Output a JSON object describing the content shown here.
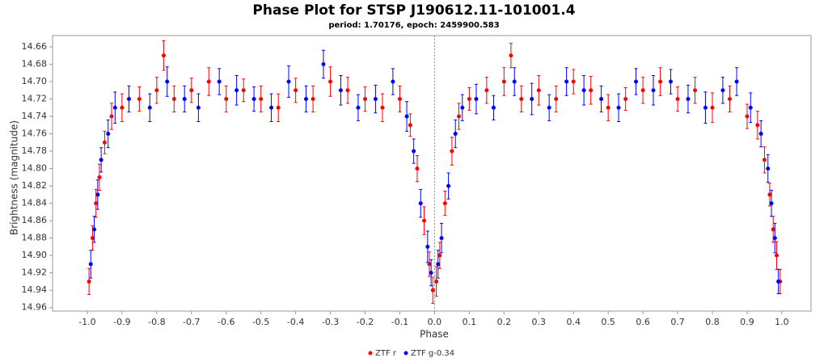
{
  "chart_data": {
    "type": "scatter",
    "title": "Phase Plot for STSP J190612.11-101001.4",
    "subtitle": "period: 1.70176, epoch: 2459900.583",
    "x_label": "Phase",
    "y_label": "Brightness (magnitude)",
    "xlim": [
      -1.1,
      1.084
    ],
    "ylim": [
      14.964,
      14.647
    ],
    "xticks": [
      {
        "value": -1,
        "label": "-1.0"
      },
      -0.9,
      -0.8,
      -0.7,
      -0.6,
      -0.5,
      -0.4,
      -0.3,
      -0.2,
      -0.1,
      {
        "value": 0,
        "label": "0.0"
      },
      0.1,
      0.2,
      0.3,
      0.4,
      0.5,
      0.6,
      0.7,
      0.8,
      0.9,
      {
        "value": 1,
        "label": "1.0"
      }
    ],
    "yticks": [
      14.66,
      14.68,
      {
        "value": 14.7,
        "label": "14.70"
      },
      14.72,
      14.74,
      14.76,
      14.78,
      {
        "value": 14.8,
        "label": "14.80"
      },
      14.82,
      14.84,
      14.86,
      14.88,
      {
        "value": 14.9,
        "label": "14.90"
      },
      14.92,
      14.94,
      14.96
    ],
    "reference_line_x": 0,
    "legend": "bottom",
    "series": [
      {
        "name": "ZTF r",
        "color": "#ff0000",
        "x": [
          -0.995,
          -0.985,
          -0.975,
          -0.965,
          -0.95,
          -0.93,
          -0.9,
          -0.85,
          -0.8,
          -0.78,
          -0.75,
          -0.7,
          -0.65,
          -0.6,
          -0.55,
          -0.5,
          -0.45,
          -0.4,
          -0.35,
          -0.3,
          -0.25,
          -0.2,
          -0.15,
          -0.1,
          -0.07,
          -0.05,
          -0.03,
          -0.015,
          -0.005,
          0.005,
          0.015,
          0.03,
          0.05,
          0.07,
          0.1,
          0.15,
          0.2,
          0.22,
          0.25,
          0.3,
          0.35,
          0.4,
          0.45,
          0.5,
          0.55,
          0.6,
          0.65,
          0.7,
          0.75,
          0.8,
          0.85,
          0.9,
          0.93,
          0.95,
          0.965,
          0.975,
          0.985,
          0.995
        ],
        "values": [
          14.93,
          14.88,
          14.84,
          14.81,
          14.77,
          14.74,
          14.73,
          14.72,
          14.71,
          14.67,
          14.72,
          14.71,
          14.7,
          14.72,
          14.71,
          14.72,
          14.73,
          14.71,
          14.72,
          14.7,
          14.71,
          14.72,
          14.73,
          14.72,
          14.75,
          14.8,
          14.86,
          14.91,
          14.94,
          14.93,
          14.9,
          14.84,
          14.78,
          14.74,
          14.72,
          14.71,
          14.7,
          14.67,
          14.72,
          14.71,
          14.72,
          14.7,
          14.71,
          14.73,
          14.72,
          14.71,
          14.7,
          14.72,
          14.71,
          14.73,
          14.72,
          14.74,
          14.75,
          14.79,
          14.83,
          14.87,
          14.9,
          14.93
        ],
        "errors": [
          0.015,
          0.014,
          0.016,
          0.015,
          0.013,
          0.015,
          0.016,
          0.014,
          0.015,
          0.017,
          0.015,
          0.014,
          0.016,
          0.015,
          0.013,
          0.015,
          0.016,
          0.014,
          0.015,
          0.017,
          0.015,
          0.014,
          0.016,
          0.015,
          0.013,
          0.015,
          0.016,
          0.014,
          0.015,
          0.017,
          0.015,
          0.014,
          0.016,
          0.015,
          0.013,
          0.015,
          0.016,
          0.014,
          0.015,
          0.017,
          0.015,
          0.014,
          0.016,
          0.015,
          0.013,
          0.015,
          0.016,
          0.014,
          0.015,
          0.017,
          0.015,
          0.014,
          0.016,
          0.015,
          0.013,
          0.015,
          0.016,
          0.014
        ]
      },
      {
        "name": "ZTF g-0.34",
        "color": "#0000ff",
        "x": [
          -0.99,
          -0.98,
          -0.97,
          -0.96,
          -0.94,
          -0.92,
          -0.88,
          -0.82,
          -0.77,
          -0.72,
          -0.68,
          -0.62,
          -0.57,
          -0.52,
          -0.47,
          -0.42,
          -0.37,
          -0.32,
          -0.27,
          -0.22,
          -0.17,
          -0.12,
          -0.08,
          -0.06,
          -0.04,
          -0.02,
          -0.01,
          0.01,
          0.02,
          0.04,
          0.06,
          0.08,
          0.12,
          0.17,
          0.23,
          0.28,
          0.33,
          0.38,
          0.43,
          0.48,
          0.53,
          0.58,
          0.63,
          0.68,
          0.73,
          0.78,
          0.83,
          0.87,
          0.91,
          0.94,
          0.96,
          0.97,
          0.98,
          0.99
        ],
        "values": [
          14.91,
          14.87,
          14.83,
          14.79,
          14.76,
          14.73,
          14.72,
          14.73,
          14.7,
          14.72,
          14.73,
          14.7,
          14.71,
          14.72,
          14.73,
          14.7,
          14.72,
          14.68,
          14.71,
          14.73,
          14.72,
          14.7,
          14.74,
          14.78,
          14.84,
          14.89,
          14.92,
          14.91,
          14.88,
          14.82,
          14.76,
          14.73,
          14.72,
          14.73,
          14.7,
          14.72,
          14.73,
          14.7,
          14.71,
          14.72,
          14.73,
          14.7,
          14.71,
          14.7,
          14.72,
          14.73,
          14.71,
          14.7,
          14.73,
          14.76,
          14.8,
          14.84,
          14.88,
          14.93
        ],
        "errors": [
          0.016,
          0.015,
          0.017,
          0.014,
          0.016,
          0.018,
          0.015,
          0.016,
          0.017,
          0.015,
          0.016,
          0.015,
          0.017,
          0.014,
          0.016,
          0.018,
          0.015,
          0.016,
          0.017,
          0.015,
          0.016,
          0.015,
          0.017,
          0.014,
          0.016,
          0.018,
          0.015,
          0.016,
          0.017,
          0.015,
          0.016,
          0.015,
          0.017,
          0.014,
          0.016,
          0.018,
          0.015,
          0.016,
          0.017,
          0.015,
          0.016,
          0.015,
          0.017,
          0.014,
          0.016,
          0.018,
          0.015,
          0.016,
          0.017,
          0.015,
          0.016,
          0.015,
          0.017,
          0.014
        ]
      }
    ]
  }
}
